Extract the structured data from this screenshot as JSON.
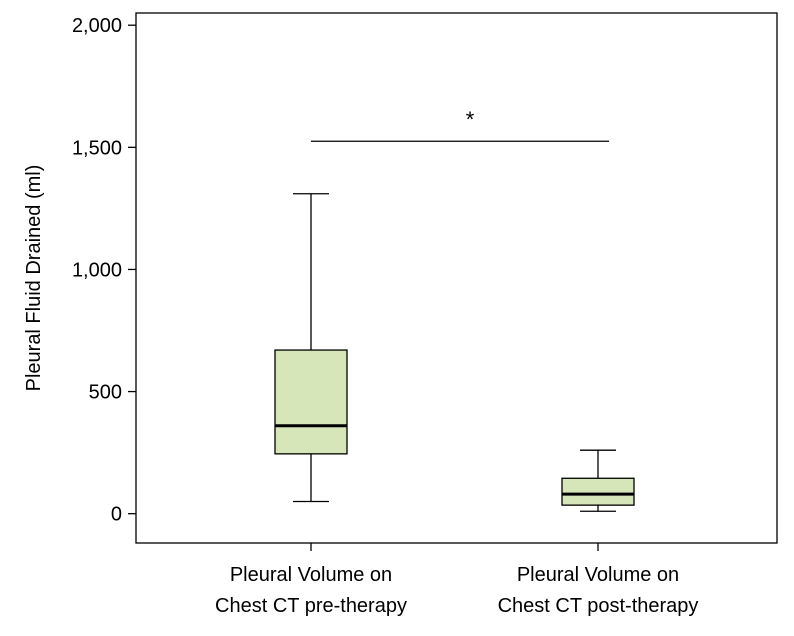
{
  "chart_data": {
    "type": "box",
    "ylabel": "Pleural Fluid Drained (ml)",
    "ylim": [
      -120,
      2050
    ],
    "yticks": [
      0,
      500,
      1000,
      1500,
      2000
    ],
    "ytick_labels": [
      "0",
      "500",
      "1,000",
      "1,500",
      "2,000"
    ],
    "categories": [
      {
        "line1": "Pleural Volume on",
        "line2": "Chest CT pre-therapy"
      },
      {
        "line1": "Pleural Volume on",
        "line2": "Chest CT post-therapy"
      }
    ],
    "boxes": [
      {
        "whisker_low": 50,
        "q1": 245,
        "median": 360,
        "q3": 670,
        "whisker_high": 1310
      },
      {
        "whisker_low": 10,
        "q1": 35,
        "median": 80,
        "q3": 145,
        "whisker_high": 260
      }
    ],
    "significance": {
      "label": "*",
      "level": 1525,
      "from_category": 0,
      "to_category": 1
    },
    "box_fill": "#d6e6b8",
    "line_color": "#000000",
    "grid": false
  }
}
